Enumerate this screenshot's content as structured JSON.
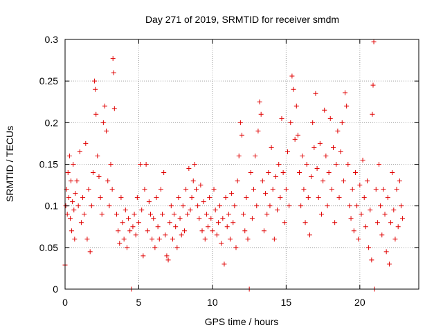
{
  "chart_data": {
    "type": "scatter",
    "title": "Day 271 of 2019, SRMTID for receiver smdm",
    "xlabel": "GPS time / hours",
    "ylabel": "SRMTID / TECUs",
    "xlim": [
      0,
      24
    ],
    "ylim": [
      0,
      0.3
    ],
    "xticks": [
      0,
      5,
      10,
      15,
      20
    ],
    "xtick_labels": [
      "0",
      "5",
      "10",
      "15",
      "20"
    ],
    "yticks": [
      0,
      0.05,
      0.1,
      0.15,
      0.2,
      0.25,
      0.3
    ],
    "ytick_labels": [
      "0",
      "0.05",
      "0.1",
      "0.15",
      "0.2",
      "0.25",
      "0.3"
    ],
    "grid": true,
    "marker": "+",
    "series_color": "#e00000",
    "series": [
      {
        "name": "SRMTID",
        "points": [
          [
            0.0,
            0.029
          ],
          [
            0.05,
            0.1
          ],
          [
            0.1,
            0.12
          ],
          [
            0.15,
            0.09
          ],
          [
            0.2,
            0.14
          ],
          [
            0.25,
            0.11
          ],
          [
            0.3,
            0.16
          ],
          [
            0.35,
            0.085
          ],
          [
            0.4,
            0.13
          ],
          [
            0.45,
            0.07
          ],
          [
            0.5,
            0.105
          ],
          [
            0.55,
            0.15
          ],
          [
            0.6,
            0.095
          ],
          [
            0.65,
            0.06
          ],
          [
            0.7,
            0.115
          ],
          [
            0.8,
            0.13
          ],
          [
            0.9,
            0.1
          ],
          [
            1.0,
            0.165
          ],
          [
            1.1,
            0.08
          ],
          [
            1.2,
            0.11
          ],
          [
            1.3,
            0.09
          ],
          [
            1.4,
            0.175
          ],
          [
            1.5,
            0.06
          ],
          [
            1.6,
            0.12
          ],
          [
            1.7,
            0.045
          ],
          [
            1.8,
            0.1
          ],
          [
            1.9,
            0.14
          ],
          [
            2.0,
            0.25
          ],
          [
            2.05,
            0.24
          ],
          [
            2.1,
            0.21
          ],
          [
            2.2,
            0.16
          ],
          [
            2.3,
            0.135
          ],
          [
            2.4,
            0.11
          ],
          [
            2.5,
            0.09
          ],
          [
            2.6,
            0.2
          ],
          [
            2.7,
            0.22
          ],
          [
            2.8,
            0.19
          ],
          [
            2.9,
            0.13
          ],
          [
            3.0,
            0.1
          ],
          [
            3.1,
            0.15
          ],
          [
            3.2,
            0.12
          ],
          [
            3.25,
            0.277
          ],
          [
            3.3,
            0.26
          ],
          [
            3.35,
            0.217
          ],
          [
            3.5,
            0.09
          ],
          [
            3.6,
            0.07
          ],
          [
            3.7,
            0.055
          ],
          [
            3.8,
            0.11
          ],
          [
            3.9,
            0.08
          ],
          [
            4.0,
            0.06
          ],
          [
            4.1,
            0.095
          ],
          [
            4.2,
            0.05
          ],
          [
            4.3,
            0.085
          ],
          [
            4.4,
            0.07
          ],
          [
            4.5,
            0.0
          ],
          [
            4.6,
            0.075
          ],
          [
            4.7,
            0.09
          ],
          [
            4.8,
            0.065
          ],
          [
            4.9,
            0.11
          ],
          [
            5.0,
            0.08
          ],
          [
            5.1,
            0.15
          ],
          [
            5.2,
            0.095
          ],
          [
            5.3,
            0.04
          ],
          [
            5.4,
            0.12
          ],
          [
            5.5,
            0.15
          ],
          [
            5.6,
            0.07
          ],
          [
            5.7,
            0.105
          ],
          [
            5.8,
            0.09
          ],
          [
            5.9,
            0.06
          ],
          [
            6.0,
            0.085
          ],
          [
            6.1,
            0.05
          ],
          [
            6.2,
            0.11
          ],
          [
            6.3,
            0.075
          ],
          [
            6.4,
            0.06
          ],
          [
            6.5,
            0.12
          ],
          [
            6.6,
            0.09
          ],
          [
            6.7,
            0.14
          ],
          [
            6.8,
            0.065
          ],
          [
            6.9,
            0.04
          ],
          [
            7.0,
            0.035
          ],
          [
            7.1,
            0.08
          ],
          [
            7.2,
            0.1
          ],
          [
            7.3,
            0.06
          ],
          [
            7.4,
            0.09
          ],
          [
            7.5,
            0.075
          ],
          [
            7.6,
            0.05
          ],
          [
            7.7,
            0.11
          ],
          [
            7.8,
            0.085
          ],
          [
            7.9,
            0.065
          ],
          [
            8.0,
            0.1
          ],
          [
            8.1,
            0.07
          ],
          [
            8.2,
            0.12
          ],
          [
            8.3,
            0.09
          ],
          [
            8.4,
            0.145
          ],
          [
            8.5,
            0.095
          ],
          [
            8.6,
            0.11
          ],
          [
            8.7,
            0.13
          ],
          [
            8.8,
            0.15
          ],
          [
            8.9,
            0.12
          ],
          [
            9.0,
            0.1
          ],
          [
            9.1,
            0.085
          ],
          [
            9.2,
            0.125
          ],
          [
            9.3,
            0.07
          ],
          [
            9.4,
            0.105
          ],
          [
            9.5,
            0.06
          ],
          [
            9.6,
            0.09
          ],
          [
            9.7,
            0.075
          ],
          [
            9.8,
            0.11
          ],
          [
            9.9,
            0.085
          ],
          [
            10.0,
            0.07
          ],
          [
            10.1,
            0.12
          ],
          [
            10.2,
            0.095
          ],
          [
            10.3,
            0.065
          ],
          [
            10.4,
            0.08
          ],
          [
            10.5,
            0.1
          ],
          [
            10.6,
            0.055
          ],
          [
            10.7,
            0.085
          ],
          [
            10.8,
            0.03
          ],
          [
            10.9,
            0.11
          ],
          [
            11.0,
            0.075
          ],
          [
            11.1,
            0.09
          ],
          [
            11.2,
            0.06
          ],
          [
            11.3,
            0.115
          ],
          [
            11.4,
            0.08
          ],
          [
            11.5,
            0.1
          ],
          [
            11.6,
            0.05
          ],
          [
            11.7,
            0.13
          ],
          [
            11.8,
            0.16
          ],
          [
            11.9,
            0.2
          ],
          [
            12.0,
            0.185
          ],
          [
            12.1,
            0.09
          ],
          [
            12.2,
            0.07
          ],
          [
            12.3,
            0.11
          ],
          [
            12.4,
            0.06
          ],
          [
            12.5,
            0.0
          ],
          [
            12.6,
            0.14
          ],
          [
            12.7,
            0.085
          ],
          [
            12.8,
            0.12
          ],
          [
            12.9,
            0.16
          ],
          [
            13.0,
            0.1
          ],
          [
            13.1,
            0.19
          ],
          [
            13.2,
            0.225
          ],
          [
            13.3,
            0.21
          ],
          [
            13.4,
            0.13
          ],
          [
            13.5,
            0.07
          ],
          [
            13.6,
            0.115
          ],
          [
            13.7,
            0.09
          ],
          [
            13.8,
            0.14
          ],
          [
            13.9,
            0.1
          ],
          [
            14.0,
            0.17
          ],
          [
            14.1,
            0.12
          ],
          [
            14.2,
            0.06
          ],
          [
            14.3,
            0.135
          ],
          [
            14.4,
            0.095
          ],
          [
            14.5,
            0.15
          ],
          [
            14.6,
            0.11
          ],
          [
            14.7,
            0.205
          ],
          [
            14.8,
            0.14
          ],
          [
            14.9,
            0.08
          ],
          [
            15.0,
            0.12
          ],
          [
            15.1,
            0.165
          ],
          [
            15.2,
            0.1
          ],
          [
            15.3,
            0.2
          ],
          [
            15.4,
            0.256
          ],
          [
            15.5,
            0.24
          ],
          [
            15.6,
            0.18
          ],
          [
            15.7,
            0.22
          ],
          [
            15.8,
            0.185
          ],
          [
            15.9,
            0.14
          ],
          [
            16.0,
            0.1
          ],
          [
            16.1,
            0.16
          ],
          [
            16.2,
            0.12
          ],
          [
            16.3,
            0.08
          ],
          [
            16.4,
            0.15
          ],
          [
            16.5,
            0.11
          ],
          [
            16.6,
            0.065
          ],
          [
            16.7,
            0.135
          ],
          [
            16.8,
            0.2
          ],
          [
            16.9,
            0.17
          ],
          [
            17.0,
            0.235
          ],
          [
            17.1,
            0.145
          ],
          [
            17.2,
            0.11
          ],
          [
            17.3,
            0.175
          ],
          [
            17.4,
            0.09
          ],
          [
            17.5,
            0.13
          ],
          [
            17.6,
            0.215
          ],
          [
            17.7,
            0.16
          ],
          [
            17.8,
            0.1
          ],
          [
            17.9,
            0.14
          ],
          [
            18.0,
            0.205
          ],
          [
            18.1,
            0.12
          ],
          [
            18.2,
            0.17
          ],
          [
            18.3,
            0.08
          ],
          [
            18.4,
            0.15
          ],
          [
            18.5,
            0.19
          ],
          [
            18.6,
            0.11
          ],
          [
            18.7,
            0.165
          ],
          [
            18.8,
            0.2
          ],
          [
            18.9,
            0.13
          ],
          [
            19.0,
            0.236
          ],
          [
            19.1,
            0.22
          ],
          [
            19.2,
            0.15
          ],
          [
            19.3,
            0.1
          ],
          [
            19.4,
            0.085
          ],
          [
            19.5,
            0.12
          ],
          [
            19.6,
            0.07
          ],
          [
            19.7,
            0.14
          ],
          [
            19.8,
            0.1
          ],
          [
            19.9,
            0.06
          ],
          [
            20.0,
            0.125
          ],
          [
            20.1,
            0.09
          ],
          [
            20.2,
            0.155
          ],
          [
            20.3,
            0.11
          ],
          [
            20.4,
            0.075
          ],
          [
            20.5,
            0.13
          ],
          [
            20.6,
            0.05
          ],
          [
            20.7,
            0.095
          ],
          [
            20.8,
            0.035
          ],
          [
            20.85,
            0.21
          ],
          [
            20.9,
            0.245
          ],
          [
            20.95,
            0.297
          ],
          [
            21.0,
            0.0
          ],
          [
            21.1,
            0.12
          ],
          [
            21.2,
            0.08
          ],
          [
            21.3,
            0.15
          ],
          [
            21.4,
            0.1
          ],
          [
            21.5,
            0.065
          ],
          [
            21.6,
            0.12
          ],
          [
            21.7,
            0.09
          ],
          [
            21.8,
            0.045
          ],
          [
            21.9,
            0.11
          ],
          [
            22.0,
            0.03
          ],
          [
            22.1,
            0.08
          ],
          [
            22.2,
            0.14
          ],
          [
            22.3,
            0.095
          ],
          [
            22.4,
            0.06
          ],
          [
            22.5,
            0.12
          ],
          [
            22.6,
            0.075
          ],
          [
            22.7,
            0.13
          ],
          [
            22.8,
            0.1
          ],
          [
            22.9,
            0.085
          ]
        ]
      }
    ]
  }
}
